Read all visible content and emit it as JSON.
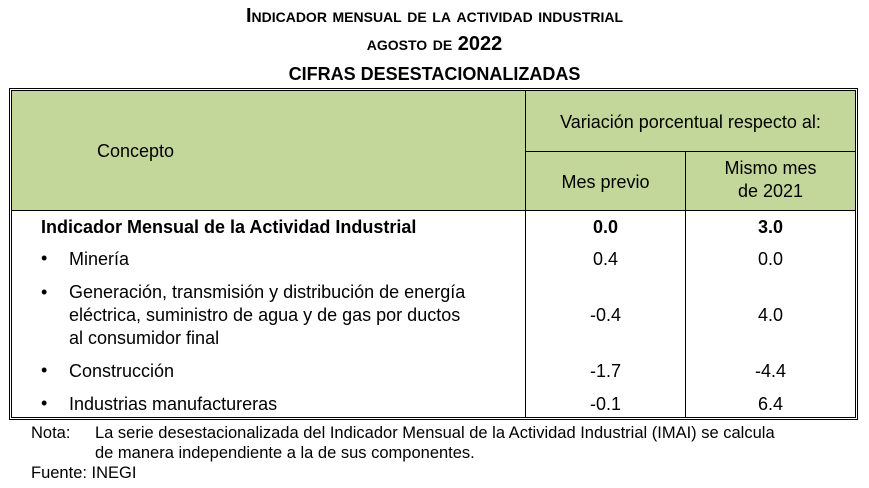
{
  "title": {
    "line1": "Indicador mensual de la actividad industrial",
    "line2": "agosto de 2022",
    "line3": "CIFRAS DESESTACIONALIZADAS"
  },
  "table": {
    "header": {
      "concepto": "Concepto",
      "variacion": "Variación porcentual respecto al:",
      "mes_previo": "Mes previo",
      "mismo_mes_1": "Mismo mes",
      "mismo_mes_2": "de 2021"
    },
    "rows": [
      {
        "concepto": "Indicador Mensual de la Actividad Industrial",
        "mes_previo": "0.0",
        "mismo_mes": "3.0"
      },
      {
        "concepto": "Minería",
        "mes_previo": "0.4",
        "mismo_mes": "0.0"
      },
      {
        "concepto_l1": "Generación, transmisión y distribución de energía",
        "concepto_l2": "eléctrica, suministro de agua y de gas por ductos",
        "concepto_l3": "al consumidor final",
        "mes_previo": "-0.4",
        "mismo_mes": "4.0"
      },
      {
        "concepto": "Construcción",
        "mes_previo": "-1.7",
        "mismo_mes": "-4.4"
      },
      {
        "concepto": "Industrias manufactureras",
        "mes_previo": "-0.1",
        "mismo_mes": "6.4"
      }
    ],
    "bullet": "•"
  },
  "note": {
    "label": "Nota:",
    "line1": "La serie desestacionalizada del Indicador Mensual de la Actividad Industrial (IMAI) se calcula",
    "line2": "de manera independiente a la de sus componentes.",
    "source": "Fuente: INEGI"
  },
  "colors": {
    "header_bg": "#c4d79b"
  }
}
